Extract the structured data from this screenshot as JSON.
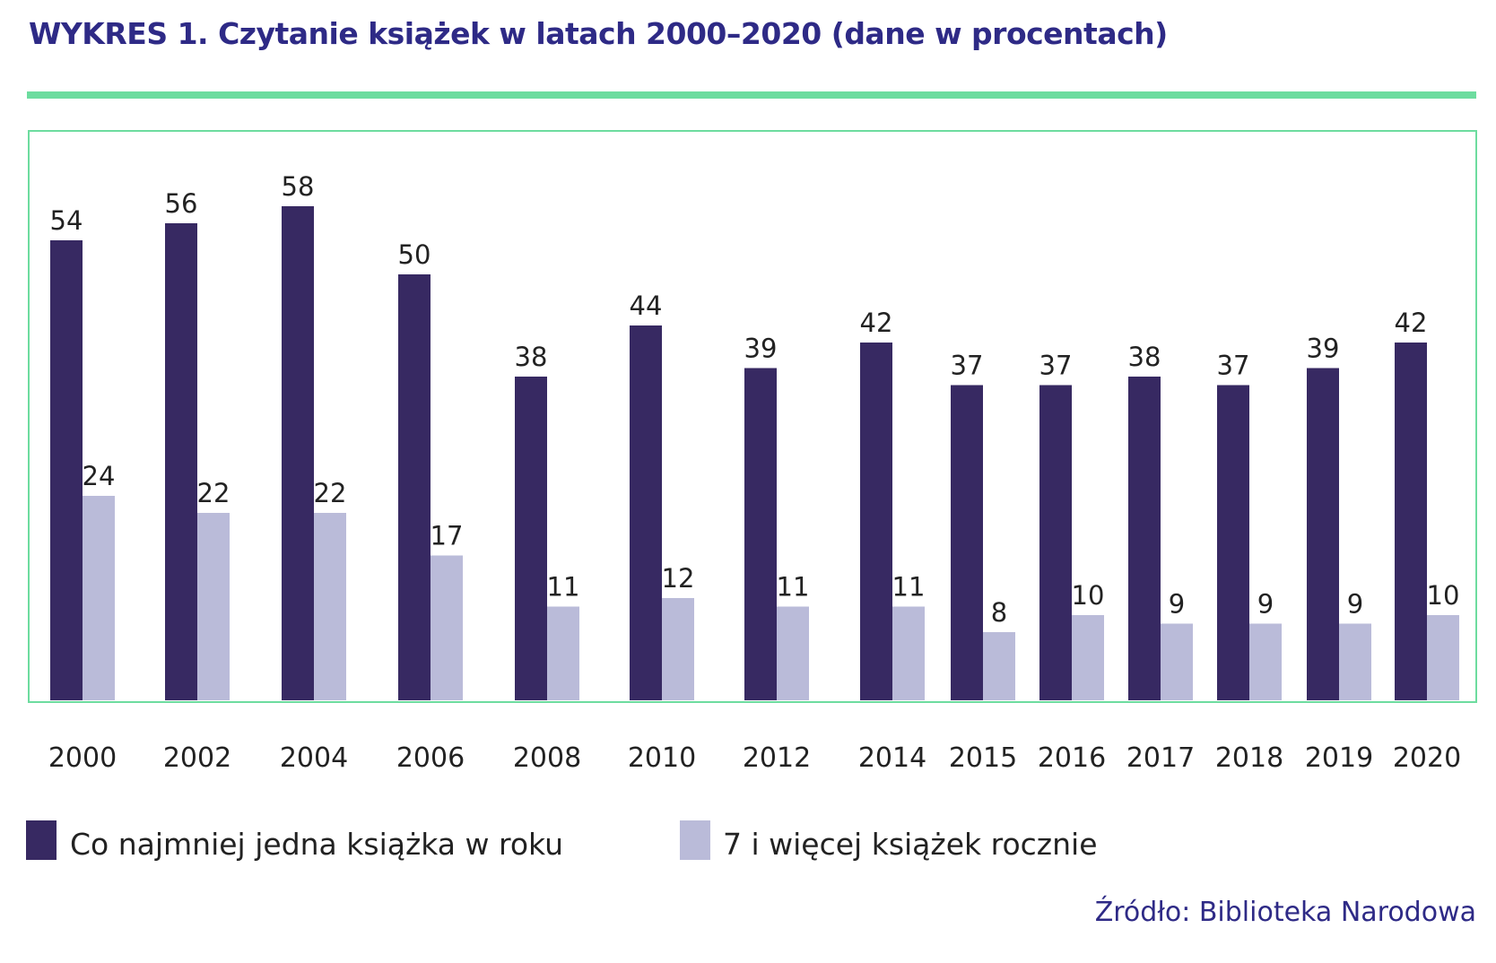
{
  "title": "WYKRES 1. Czytanie książek w latach 2000–2020 (dane w procentach)",
  "source": "Źródło: Biblioteka Narodowa",
  "colors": {
    "series1": "#372962",
    "series2": "#babbd9",
    "frame": "#6ddc9f",
    "title": "#2e2a86"
  },
  "legend": [
    {
      "label": "Co najmniej jedna książka w roku"
    },
    {
      "label": "7 i więcej książek rocznie"
    }
  ],
  "chart_data": {
    "type": "bar",
    "title": "WYKRES 1. Czytanie książek w latach 2000–2020 (dane w procentach)",
    "xlabel": "",
    "ylabel": "",
    "categories": [
      "2000",
      "2002",
      "2004",
      "2006",
      "2008",
      "2010",
      "2012",
      "2014",
      "2015",
      "2016",
      "2017",
      "2018",
      "2019",
      "2020"
    ],
    "series": [
      {
        "name": "Co najmniej jedna książka w roku",
        "values": [
          54,
          56,
          58,
          50,
          38,
          44,
          39,
          42,
          37,
          37,
          38,
          37,
          39,
          42
        ]
      },
      {
        "name": "7 i więcej książek rocznie",
        "values": [
          24,
          22,
          22,
          17,
          11,
          12,
          11,
          11,
          8,
          10,
          9,
          9,
          9,
          10
        ]
      }
    ],
    "ylim": [
      0,
      65
    ],
    "grid": false,
    "legend_position": "bottom-left",
    "data_labels": true
  }
}
